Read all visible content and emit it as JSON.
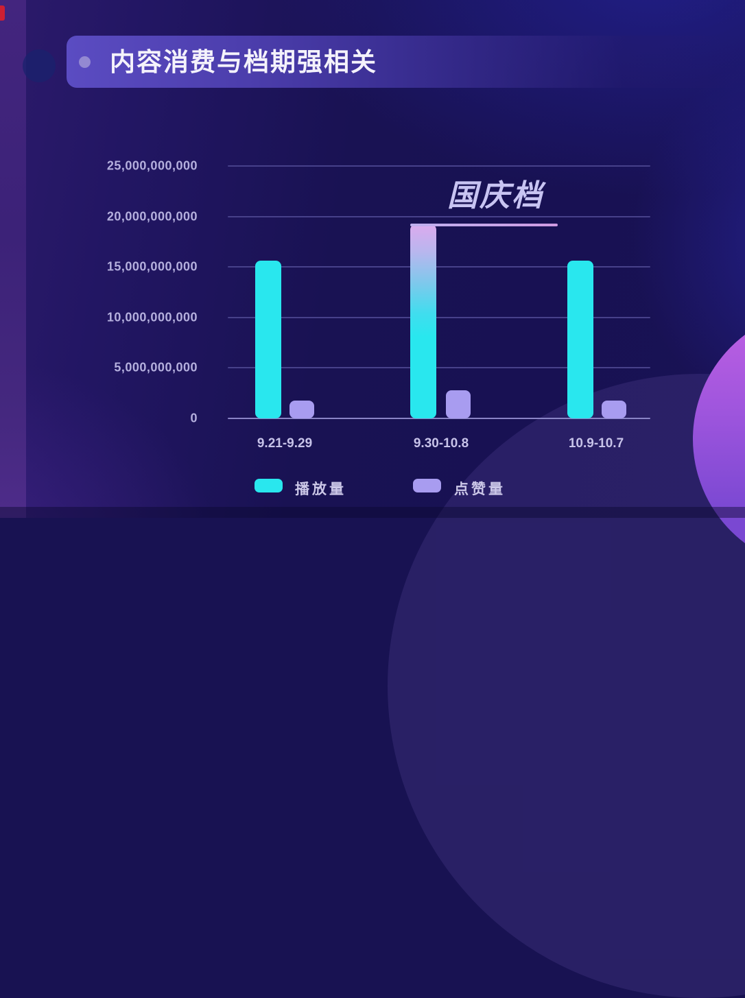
{
  "page": {
    "title": "内容消费与档期强相关"
  },
  "chart_data": {
    "type": "bar",
    "title": "内容消费与档期强相关",
    "categories": [
      "9.21-9.29",
      "9.30-10.8",
      "10.9-10.7"
    ],
    "series": [
      {
        "name": "播放量",
        "values": [
          15600000000,
          19200000000,
          15600000000
        ],
        "color": "#29e7ee"
      },
      {
        "name": "点赞量",
        "values": [
          1800000000,
          2800000000,
          1800000000
        ],
        "color": "#a89cf0"
      }
    ],
    "ylim": [
      0,
      25000000000
    ],
    "y_ticks": [
      0,
      5000000000,
      10000000000,
      15000000000,
      20000000000,
      25000000000
    ],
    "y_tick_labels": [
      "0",
      "5,000,000,000",
      "10,000,000,000",
      "15,000,000,000",
      "20,000,000,000",
      "25,000,000,000"
    ],
    "grid": "horizontal",
    "legend_position": "bottom",
    "annotation": {
      "text": "国庆档",
      "series_index": 0,
      "category_index": 1
    }
  },
  "legend": {
    "items": [
      {
        "label": "播放量",
        "color": "#29e7ee"
      },
      {
        "label": "点赞量",
        "color": "#a89cf0"
      }
    ]
  },
  "colors": {
    "background": "#181252",
    "left_band": "#43257e",
    "title_banner": "#5b4cc2",
    "title_text": "#f4f2fb",
    "bar_play": "#29e7ee",
    "bar_like": "#a89cf0",
    "bar_highlight_top": "#dcaaee",
    "gridline": "#47418a",
    "axis_line": "#8a84c6",
    "y_tick_text": "#b5b0de",
    "x_tick_text": "#c7c3e9",
    "annotation_text": "#c8c4f2",
    "magenta_circle": "#bb5fe2",
    "red_mark": "#cf1f33"
  }
}
